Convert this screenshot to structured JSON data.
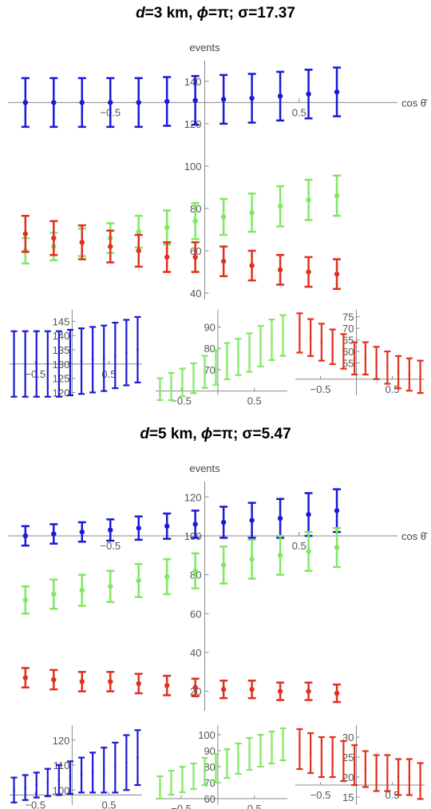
{
  "colors": {
    "blue": "#1a1ad6",
    "green": "#7fe860",
    "red": "#e0301e",
    "axis": "#888888"
  },
  "panels": [
    {
      "title": {
        "d_label": "d",
        "d_value": "=3 km, ",
        "phi_label": "ϕ",
        "phi_value": "=π; σ=17.37"
      },
      "main": {
        "ylabel": "events",
        "xlabel": "cos θ̄",
        "xlim": [
          -1,
          1
        ],
        "ylim": [
          37,
          152
        ],
        "x_axis_y": 130,
        "yticks": [
          40,
          60,
          80,
          100,
          120,
          140
        ],
        "xticks": [
          -0.5,
          0.5
        ],
        "series": [
          {
            "name": "blue",
            "color": "#1a1ad6",
            "x": [
              -0.95,
              -0.8,
              -0.65,
              -0.5,
              -0.35,
              -0.2,
              -0.05,
              0.1,
              0.25,
              0.4,
              0.55,
              0.7
            ],
            "y": [
              130,
              130,
              130,
              130,
              130,
              130.5,
              131,
              131.5,
              132,
              133,
              134,
              135
            ],
            "err": [
              11.5,
              11.5,
              11.5,
              11.5,
              11.5,
              11.5,
              11.5,
              11.5,
              11.5,
              11.5,
              11.5,
              11.5
            ]
          },
          {
            "name": "green",
            "color": "#7fe860",
            "x": [
              -0.95,
              -0.8,
              -0.65,
              -0.5,
              -0.35,
              -0.2,
              -0.05,
              0.1,
              0.25,
              0.4,
              0.55,
              0.7
            ],
            "y": [
              60,
              62,
              64,
              66,
              69,
              71,
              74,
              76,
              78,
              81,
              84,
              86
            ],
            "err": [
              6,
              6.5,
              6.5,
              7,
              7.5,
              8,
              8.5,
              8.5,
              9,
              9.5,
              9.5,
              9.5
            ]
          },
          {
            "name": "red",
            "color": "#e0301e",
            "x": [
              -0.95,
              -0.8,
              -0.65,
              -0.5,
              -0.35,
              -0.2,
              -0.05,
              0.1,
              0.25,
              0.4,
              0.55,
              0.7
            ],
            "y": [
              68,
              66,
              64,
              62,
              60,
              57,
              57,
              55,
              53,
              51,
              50,
              49
            ],
            "err": [
              8.5,
              8,
              8,
              7.5,
              7.5,
              7,
              7,
              7,
              7,
              7,
              7,
              7
            ]
          }
        ]
      },
      "subplots": [
        {
          "color": "#1a1ad6",
          "xlim": [
            -0.85,
            0.95
          ],
          "ylim": [
            119,
            149
          ],
          "x_axis_y": 130,
          "yticks": [
            120,
            125,
            130,
            135,
            140,
            145
          ],
          "ytick_labels": [
            "120",
            "125",
            "130",
            "135",
            "140",
            "145"
          ],
          "xticks": [
            -0.5,
            0.5
          ],
          "y": [
            130,
            130,
            130,
            130,
            130,
            130.5,
            131,
            131.5,
            132,
            133,
            134,
            135
          ],
          "err": [
            11.5,
            11.5,
            11.5,
            11.5,
            11.5,
            11.5,
            11.5,
            11.5,
            11.5,
            11.5,
            11.5,
            11.5
          ]
        },
        {
          "color": "#7fe860",
          "xlim": [
            -0.85,
            0.95
          ],
          "ylim": [
            58,
            98
          ],
          "x_axis_y": 60,
          "yticks": [
            70,
            80,
            90
          ],
          "ytick_labels": [
            "70",
            "80",
            "90"
          ],
          "xticks": [
            -0.5,
            0.5
          ],
          "y": [
            60,
            62,
            64,
            66,
            69,
            71,
            74,
            76,
            78,
            81,
            84,
            86
          ],
          "err": [
            6,
            6.5,
            6.5,
            7,
            7.5,
            8,
            8.5,
            8.5,
            9,
            9.5,
            9.5,
            9.5
          ]
        },
        {
          "color": "#e0301e",
          "xlim": [
            -0.85,
            0.95
          ],
          "ylim": [
            41,
            78
          ],
          "x_axis_y": 48,
          "yticks": [
            55,
            60,
            65,
            70,
            75
          ],
          "ytick_labels": [
            "55",
            "60",
            "65",
            "70",
            "75"
          ],
          "xticks": [
            -0.5,
            0.5
          ],
          "y": [
            68,
            66,
            64,
            62,
            60,
            57,
            57,
            55,
            53,
            51,
            50,
            49
          ],
          "err": [
            8.5,
            8,
            8,
            7.5,
            7.5,
            7,
            7,
            7,
            7,
            7,
            7,
            7
          ]
        }
      ]
    },
    {
      "title": {
        "d_label": "d",
        "d_value": "=5 km, ",
        "phi_label": "ϕ",
        "phi_value": "=π; σ=5.47"
      },
      "main": {
        "ylabel": "events",
        "xlabel": "cos θ̄",
        "xlim": [
          -1,
          1
        ],
        "ylim": [
          10,
          130
        ],
        "x_axis_y": 100,
        "yticks": [
          20,
          40,
          60,
          80,
          100,
          120
        ],
        "xticks": [
          -0.5,
          0.5
        ],
        "series": [
          {
            "name": "blue",
            "color": "#1a1ad6",
            "x": [
              -0.95,
              -0.8,
              -0.65,
              -0.5,
              -0.35,
              -0.2,
              -0.05,
              0.1,
              0.25,
              0.4,
              0.55,
              0.7
            ],
            "y": [
              100,
              101,
              102,
              103,
              104,
              105,
              106,
              107,
              108,
              109,
              111,
              113
            ],
            "err": [
              5,
              5,
              5,
              5.5,
              6,
              6.5,
              7,
              8,
              9,
              10,
              11,
              11
            ]
          },
          {
            "name": "green",
            "color": "#7fe860",
            "x": [
              -0.95,
              -0.8,
              -0.65,
              -0.5,
              -0.35,
              -0.2,
              -0.05,
              0.1,
              0.25,
              0.4,
              0.55,
              0.7
            ],
            "y": [
              67,
              70,
              72,
              74,
              77,
              79,
              82,
              85,
              88,
              90,
              92,
              94
            ],
            "err": [
              7,
              7.5,
              8,
              8,
              8.5,
              9,
              9,
              9.5,
              10,
              10,
              10,
              10
            ]
          },
          {
            "name": "red",
            "color": "#e0301e",
            "x": [
              -0.95,
              -0.8,
              -0.65,
              -0.5,
              -0.35,
              -0.2,
              -0.05,
              0.1,
              0.25,
              0.4,
              0.55,
              0.7
            ],
            "y": [
              27,
              26,
              25,
              25,
              24,
              23,
              22,
              21,
              21,
              20,
              20,
              19
            ],
            "err": [
              5,
              5,
              5,
              5,
              5,
              5,
              4.5,
              4.5,
              4.5,
              4.5,
              4.5,
              4.5
            ]
          }
        ]
      },
      "subplots": [
        {
          "color": "#1a1ad6",
          "xlim": [
            -0.85,
            0.95
          ],
          "ylim": [
            94,
            126
          ],
          "x_axis_y": 98,
          "yticks": [
            100,
            110,
            120
          ],
          "ytick_labels": [
            "100",
            "110",
            "120"
          ],
          "xticks": [
            -0.5,
            0.5
          ],
          "y": [
            100,
            101,
            102,
            103,
            104,
            105,
            106,
            107,
            108,
            109,
            111,
            113
          ],
          "err": [
            5,
            5,
            5,
            5.5,
            6,
            6.5,
            7,
            8,
            9,
            10,
            11,
            11
          ]
        },
        {
          "color": "#7fe860",
          "xlim": [
            -0.85,
            0.95
          ],
          "ylim": [
            56,
            106
          ],
          "x_axis_y": 60,
          "yticks": [
            60,
            70,
            80,
            90,
            100
          ],
          "ytick_labels": [
            "60",
            "70",
            "80",
            "90",
            "100"
          ],
          "xticks": [
            -0.5,
            0.5
          ],
          "y": [
            67,
            70,
            72,
            74,
            77,
            79,
            82,
            85,
            88,
            90,
            92,
            94
          ],
          "err": [
            7,
            7.5,
            8,
            8,
            8.5,
            9,
            9,
            9.5,
            10,
            10,
            10,
            10
          ]
        },
        {
          "color": "#e0301e",
          "xlim": [
            -0.85,
            0.95
          ],
          "ylim": [
            13,
            33
          ],
          "x_axis_y": 18,
          "yticks": [
            15,
            20,
            25,
            30
          ],
          "ytick_labels": [
            "15",
            "20",
            "25",
            "30"
          ],
          "xticks": [
            -0.5,
            0.5
          ],
          "y": [
            27,
            26,
            25,
            25,
            24,
            23,
            22,
            21,
            21,
            20,
            20,
            19
          ],
          "err": [
            5,
            5,
            5,
            5,
            5,
            5,
            4.5,
            4.5,
            4.5,
            4.5,
            4.5,
            4.5
          ]
        }
      ]
    }
  ],
  "chart_data": [
    {
      "type": "scatter",
      "title": "d=3 km, ϕ=π; σ=17.37",
      "xlabel": "cos θ̄",
      "ylabel": "events",
      "xlim": [
        -1,
        1
      ],
      "ylim": [
        37,
        152
      ],
      "x": [
        -0.95,
        -0.8,
        -0.65,
        -0.5,
        -0.35,
        -0.2,
        -0.05,
        0.1,
        0.25,
        0.4,
        0.55,
        0.7
      ],
      "series": [
        {
          "values": [
            130,
            130,
            130,
            130,
            130,
            130.5,
            131,
            131.5,
            132,
            133,
            134,
            135
          ],
          "err": [
            11.5,
            11.5,
            11.5,
            11.5,
            11.5,
            11.5,
            11.5,
            11.5,
            11.5,
            11.5,
            11.5,
            11.5
          ],
          "color": "#1a1ad6"
        },
        {
          "values": [
            60,
            62,
            64,
            66,
            69,
            71,
            74,
            76,
            78,
            81,
            84,
            86
          ],
          "err": [
            6,
            6.5,
            6.5,
            7,
            7.5,
            8,
            8.5,
            8.5,
            9,
            9.5,
            9.5,
            9.5
          ],
          "color": "#7fe860"
        },
        {
          "values": [
            68,
            66,
            64,
            62,
            60,
            57,
            57,
            55,
            53,
            51,
            50,
            49
          ],
          "err": [
            8.5,
            8,
            8,
            7.5,
            7.5,
            7,
            7,
            7,
            7,
            7,
            7,
            7
          ],
          "color": "#e0301e"
        }
      ],
      "grid": false
    },
    {
      "type": "scatter",
      "title": "d=5 km, ϕ=π; σ=5.47",
      "xlabel": "cos θ̄",
      "ylabel": "events",
      "xlim": [
        -1,
        1
      ],
      "ylim": [
        10,
        130
      ],
      "x": [
        -0.95,
        -0.8,
        -0.65,
        -0.5,
        -0.35,
        -0.2,
        -0.05,
        0.1,
        0.25,
        0.4,
        0.55,
        0.7
      ],
      "series": [
        {
          "values": [
            100,
            101,
            102,
            103,
            104,
            105,
            106,
            107,
            108,
            109,
            111,
            113
          ],
          "err": [
            5,
            5,
            5,
            5.5,
            6,
            6.5,
            7,
            8,
            9,
            10,
            11,
            11
          ],
          "color": "#1a1ad6"
        },
        {
          "values": [
            67,
            70,
            72,
            74,
            77,
            79,
            82,
            85,
            88,
            90,
            92,
            94
          ],
          "err": [
            7,
            7.5,
            8,
            8,
            8.5,
            9,
            9,
            9.5,
            10,
            10,
            10,
            10
          ],
          "color": "#7fe860"
        },
        {
          "values": [
            27,
            26,
            25,
            25,
            24,
            23,
            22,
            21,
            21,
            20,
            20,
            19
          ],
          "err": [
            5,
            5,
            5,
            5,
            5,
            5,
            4.5,
            4.5,
            4.5,
            4.5,
            4.5,
            4.5
          ],
          "color": "#e0301e"
        }
      ],
      "grid": false
    }
  ]
}
